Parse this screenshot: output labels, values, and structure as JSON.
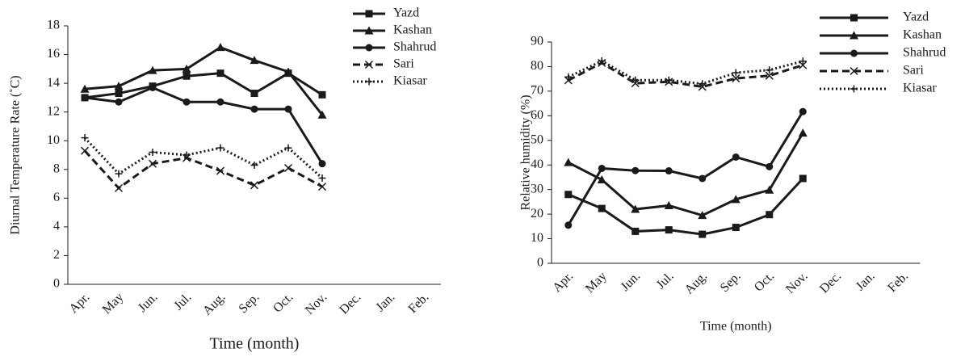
{
  "chart_data": [
    {
      "type": "line",
      "x_label": "Time (month)",
      "y_label": "Diurnal Temperature Rate (˚C)",
      "categories": [
        "Apr.",
        "May",
        "Jun.",
        "Jul.",
        "Aug.",
        "Sep.",
        "Oct.",
        "Nov.",
        "Dec.",
        "Jan.",
        "Feb."
      ],
      "ylim": [
        0,
        18
      ],
      "yticks": [
        0,
        2,
        4,
        6,
        8,
        10,
        12,
        14,
        16,
        18
      ],
      "grid": false,
      "legend": "upper right",
      "series": [
        {
          "name": "Yazd",
          "color": "#1a1a1a",
          "dash": "solid",
          "marker": "square",
          "values": [
            13.0,
            13.3,
            13.8,
            14.5,
            14.7,
            13.3,
            14.7,
            13.2,
            null,
            null,
            null
          ]
        },
        {
          "name": "Kashan",
          "color": "#1a1a1a",
          "dash": "solid",
          "marker": "triangle",
          "values": [
            13.6,
            13.8,
            14.9,
            15.0,
            16.5,
            15.6,
            14.8,
            11.8,
            null,
            null,
            null
          ]
        },
        {
          "name": "Shahrud",
          "color": "#1a1a1a",
          "dash": "solid",
          "marker": "circle",
          "values": [
            13.0,
            12.7,
            13.7,
            12.7,
            12.7,
            12.2,
            12.2,
            8.4,
            null,
            null,
            null
          ]
        },
        {
          "name": "Sari",
          "color": "#1a1a1a",
          "dash": "dashed",
          "marker": "x",
          "values": [
            9.3,
            6.7,
            8.4,
            8.8,
            7.9,
            6.9,
            8.1,
            6.8,
            null,
            null,
            null
          ]
        },
        {
          "name": "Kiasar",
          "color": "#1a1a1a",
          "dash": "dotted",
          "marker": "plus",
          "values": [
            10.2,
            7.7,
            9.2,
            9.0,
            9.5,
            8.3,
            9.5,
            7.4,
            null,
            null,
            null
          ]
        }
      ]
    },
    {
      "type": "line",
      "x_label": "Time (month)",
      "y_label": "Relative humidity (%)",
      "categories": [
        "Apr.",
        "May",
        "Jun.",
        "Jul.",
        "Aug.",
        "Sep.",
        "Oct.",
        "Nov.",
        "Dec.",
        "Jan.",
        "Feb."
      ],
      "ylim": [
        0,
        90
      ],
      "yticks": [
        0,
        10,
        20,
        30,
        40,
        50,
        60,
        70,
        80,
        90
      ],
      "grid": false,
      "legend": "upper right",
      "series": [
        {
          "name": "Yazd",
          "color": "#1a1a1a",
          "dash": "solid",
          "marker": "square",
          "values": [
            28.0,
            22.3,
            13.0,
            13.6,
            11.8,
            14.6,
            19.8,
            34.5,
            null,
            null,
            null
          ]
        },
        {
          "name": "Kashan",
          "color": "#1a1a1a",
          "dash": "solid",
          "marker": "triangle",
          "values": [
            41.0,
            34.0,
            22.0,
            23.5,
            19.5,
            26.0,
            29.8,
            53.0,
            null,
            null,
            null
          ]
        },
        {
          "name": "Shahrud",
          "color": "#1a1a1a",
          "dash": "solid",
          "marker": "circle",
          "values": [
            15.5,
            38.6,
            37.7,
            37.6,
            34.5,
            43.2,
            39.3,
            61.7,
            null,
            null,
            null
          ]
        },
        {
          "name": "Sari",
          "color": "#1a1a1a",
          "dash": "dashed",
          "marker": "x",
          "values": [
            74.4,
            81.5,
            73.2,
            73.8,
            71.8,
            75.2,
            76.3,
            80.6,
            null,
            null,
            null
          ]
        },
        {
          "name": "Kiasar",
          "color": "#1a1a1a",
          "dash": "dotted",
          "marker": "plus",
          "values": [
            75.8,
            82.3,
            74.5,
            74.5,
            73.0,
            77.5,
            78.6,
            82.2,
            null,
            null,
            null
          ]
        }
      ]
    }
  ]
}
